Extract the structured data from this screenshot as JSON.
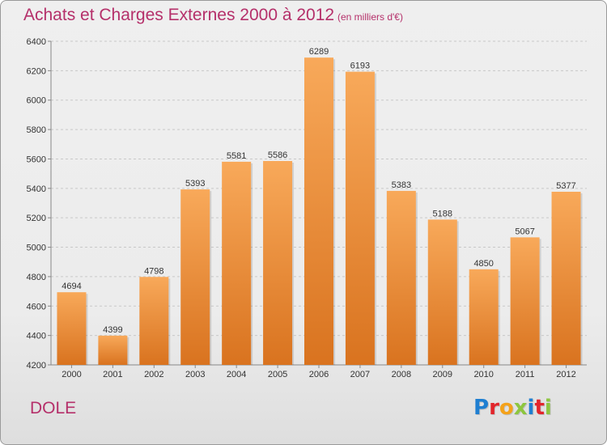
{
  "header": {
    "title": "Achats et Charges Externes 2000 à 2012",
    "subtitle": "(en milliers d'€)"
  },
  "footer": {
    "place": "DOLE",
    "logo_letters": [
      "P",
      "r",
      "o",
      "x",
      "i",
      "t",
      "i"
    ],
    "logo_colors": [
      "#1f7fd1",
      "#e2252b",
      "#f4a21a",
      "#8dc63f",
      "#1f7fd1",
      "#e2252b",
      "#8dc63f"
    ]
  },
  "colors": {
    "bar_top": "#f8a95a",
    "bar_bottom": "#d9731f",
    "grid": "#c8c8c8",
    "title": "#b5306a"
  },
  "chart_data": {
    "type": "bar",
    "title": "Achats et Charges Externes 2000 à 2012",
    "subtitle": "(en milliers d'€)",
    "categories": [
      "2000",
      "2001",
      "2002",
      "2003",
      "2004",
      "2005",
      "2006",
      "2007",
      "2008",
      "2009",
      "2010",
      "2011",
      "2012"
    ],
    "values": [
      4694,
      4399,
      4798,
      5393,
      5581,
      5586,
      6289,
      6193,
      5383,
      5188,
      4850,
      5067,
      5377
    ],
    "ylim": [
      4200,
      6400
    ],
    "yticks": [
      4200,
      4400,
      4600,
      4800,
      5000,
      5200,
      5400,
      5600,
      5800,
      6000,
      6200,
      6400
    ],
    "grid": "horizontal dashed",
    "data_labels": true
  }
}
